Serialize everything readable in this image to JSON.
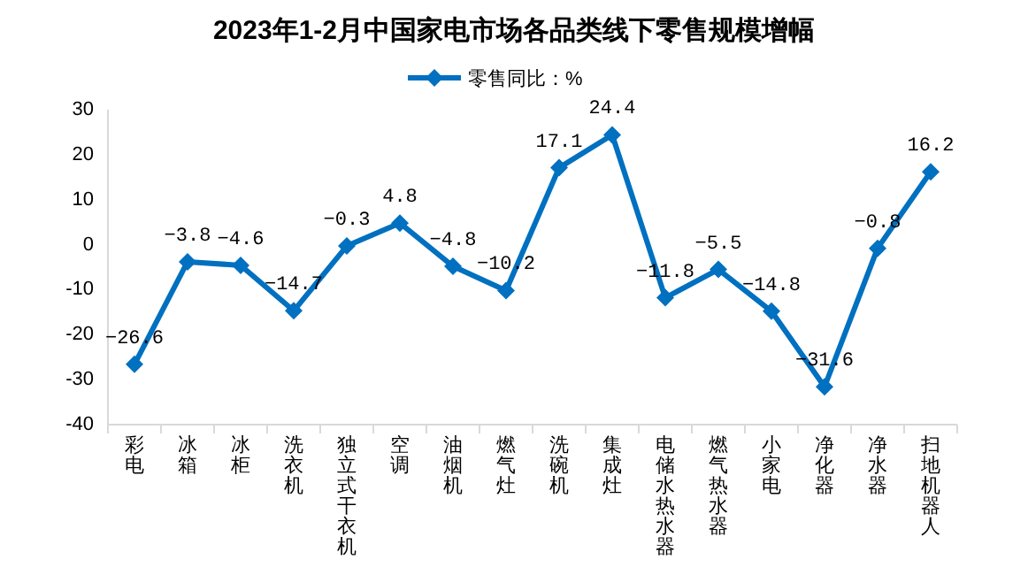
{
  "chart_data": {
    "type": "line",
    "title": "2023年1-2月中国家电市场各品类线下零售规模增幅",
    "categories": [
      "彩电",
      "冰箱",
      "冰柜",
      "洗衣机",
      "独立式干衣机",
      "空调",
      "油烟机",
      "燃气灶",
      "洗碗机",
      "集成灶",
      "电储水热水器",
      "燃气热水器",
      "小家电",
      "净化器",
      "净水器",
      "扫地机器人"
    ],
    "series": [
      {
        "name": "零售同比：%",
        "color": "#0070c0",
        "values": [
          -26.6,
          -3.8,
          -4.6,
          -14.7,
          -0.3,
          4.8,
          -4.8,
          -10.2,
          17.1,
          24.4,
          -11.8,
          -5.5,
          -14.8,
          -31.6,
          -0.8,
          16.2
        ]
      }
    ],
    "ylim": [
      -40,
      30
    ],
    "yticks": [
      -40,
      -30,
      -20,
      -10,
      0,
      10,
      20,
      30
    ],
    "data_labels": true,
    "legend": "top",
    "marker": "diamond",
    "line_style": "solid",
    "grid": false
  }
}
